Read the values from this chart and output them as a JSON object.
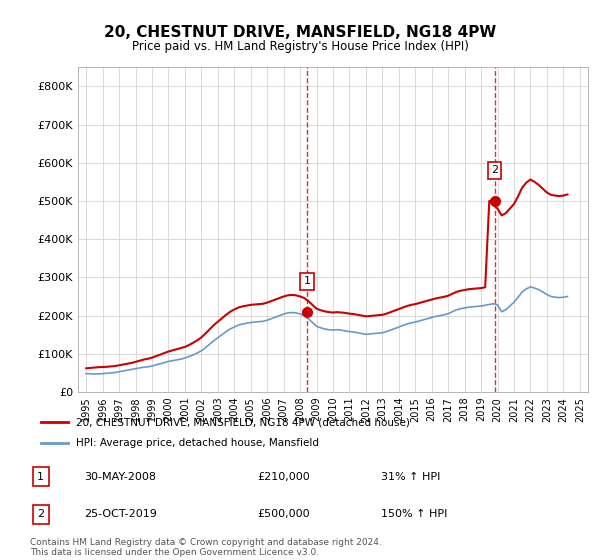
{
  "title": "20, CHESTNUT DRIVE, MANSFIELD, NG18 4PW",
  "subtitle": "Price paid vs. HM Land Registry's House Price Index (HPI)",
  "house_color": "#cc0000",
  "hpi_color": "#6699cc",
  "background_color": "#ffffff",
  "grid_color": "#cccccc",
  "ylim": [
    0,
    850000
  ],
  "yticks": [
    0,
    100000,
    200000,
    300000,
    400000,
    500000,
    600000,
    700000,
    800000
  ],
  "xlim_start": 1994.5,
  "xlim_end": 2025.5,
  "sale1_x": 2008.41,
  "sale1_y": 210000,
  "sale1_label": "1",
  "sale1_date": "30-MAY-2008",
  "sale1_price": "£210,000",
  "sale1_pct": "31% ↑ HPI",
  "sale2_x": 2019.82,
  "sale2_y": 500000,
  "sale2_label": "2",
  "sale2_date": "25-OCT-2019",
  "sale2_price": "£500,000",
  "sale2_pct": "150% ↑ HPI",
  "legend_house": "20, CHESTNUT DRIVE, MANSFIELD, NG18 4PW (detached house)",
  "legend_hpi": "HPI: Average price, detached house, Mansfield",
  "footer": "Contains HM Land Registry data © Crown copyright and database right 2024.\nThis data is licensed under the Open Government Licence v3.0.",
  "hpi_data_x": [
    1995.0,
    1995.25,
    1995.5,
    1995.75,
    1996.0,
    1996.25,
    1996.5,
    1996.75,
    1997.0,
    1997.25,
    1997.5,
    1997.75,
    1998.0,
    1998.25,
    1998.5,
    1998.75,
    1999.0,
    1999.25,
    1999.5,
    1999.75,
    2000.0,
    2000.25,
    2000.5,
    2000.75,
    2001.0,
    2001.25,
    2001.5,
    2001.75,
    2002.0,
    2002.25,
    2002.5,
    2002.75,
    2003.0,
    2003.25,
    2003.5,
    2003.75,
    2004.0,
    2004.25,
    2004.5,
    2004.75,
    2005.0,
    2005.25,
    2005.5,
    2005.75,
    2006.0,
    2006.25,
    2006.5,
    2006.75,
    2007.0,
    2007.25,
    2007.5,
    2007.75,
    2008.0,
    2008.25,
    2008.5,
    2008.75,
    2009.0,
    2009.25,
    2009.5,
    2009.75,
    2010.0,
    2010.25,
    2010.5,
    2010.75,
    2011.0,
    2011.25,
    2011.5,
    2011.75,
    2012.0,
    2012.25,
    2012.5,
    2012.75,
    2013.0,
    2013.25,
    2013.5,
    2013.75,
    2014.0,
    2014.25,
    2014.5,
    2014.75,
    2015.0,
    2015.25,
    2015.5,
    2015.75,
    2016.0,
    2016.25,
    2016.5,
    2016.75,
    2017.0,
    2017.25,
    2017.5,
    2017.75,
    2018.0,
    2018.25,
    2018.5,
    2018.75,
    2019.0,
    2019.25,
    2019.5,
    2019.75,
    2020.0,
    2020.25,
    2020.5,
    2020.75,
    2021.0,
    2021.25,
    2021.5,
    2021.75,
    2022.0,
    2022.25,
    2022.5,
    2022.75,
    2023.0,
    2023.25,
    2023.5,
    2023.75,
    2024.0,
    2024.25
  ],
  "hpi_data_y": [
    48000,
    47500,
    47000,
    47500,
    48000,
    49000,
    50000,
    51000,
    53000,
    55000,
    57000,
    59000,
    61000,
    63000,
    65000,
    66000,
    68000,
    71000,
    74000,
    77000,
    80000,
    82000,
    84000,
    86000,
    89000,
    93000,
    97000,
    102000,
    108000,
    116000,
    125000,
    134000,
    142000,
    150000,
    158000,
    165000,
    170000,
    175000,
    178000,
    180000,
    182000,
    183000,
    184000,
    185000,
    188000,
    192000,
    196000,
    200000,
    204000,
    207000,
    208000,
    207000,
    204000,
    200000,
    192000,
    182000,
    172000,
    168000,
    165000,
    163000,
    162000,
    163000,
    162000,
    160000,
    158000,
    157000,
    155000,
    153000,
    151000,
    152000,
    153000,
    154000,
    155000,
    158000,
    162000,
    166000,
    170000,
    174000,
    178000,
    181000,
    183000,
    186000,
    189000,
    192000,
    195000,
    198000,
    200000,
    202000,
    205000,
    210000,
    215000,
    218000,
    220000,
    222000,
    223000,
    224000,
    225000,
    227000,
    229000,
    231000,
    228000,
    210000,
    215000,
    225000,
    235000,
    248000,
    262000,
    270000,
    275000,
    272000,
    268000,
    262000,
    255000,
    250000,
    248000,
    247000,
    248000,
    250000
  ],
  "house_data_x": [
    1995.0,
    1995.25,
    1995.5,
    1995.75,
    1996.0,
    1996.25,
    1996.5,
    1996.75,
    1997.0,
    1997.25,
    1997.5,
    1997.75,
    1998.0,
    1998.25,
    1998.5,
    1998.75,
    1999.0,
    1999.25,
    1999.5,
    1999.75,
    2000.0,
    2000.25,
    2000.5,
    2000.75,
    2001.0,
    2001.25,
    2001.5,
    2001.75,
    2002.0,
    2002.25,
    2002.5,
    2002.75,
    2003.0,
    2003.25,
    2003.5,
    2003.75,
    2004.0,
    2004.25,
    2004.5,
    2004.75,
    2005.0,
    2005.25,
    2005.5,
    2005.75,
    2006.0,
    2006.25,
    2006.5,
    2006.75,
    2007.0,
    2007.25,
    2007.5,
    2007.75,
    2008.0,
    2008.25,
    2008.5,
    2008.75,
    2009.0,
    2009.25,
    2009.5,
    2009.75,
    2010.0,
    2010.25,
    2010.5,
    2010.75,
    2011.0,
    2011.25,
    2011.5,
    2011.75,
    2012.0,
    2012.25,
    2012.5,
    2012.75,
    2013.0,
    2013.25,
    2013.5,
    2013.75,
    2014.0,
    2014.25,
    2014.5,
    2014.75,
    2015.0,
    2015.25,
    2015.5,
    2015.75,
    2016.0,
    2016.25,
    2016.5,
    2016.75,
    2017.0,
    2017.25,
    2017.5,
    2017.75,
    2018.0,
    2018.25,
    2018.5,
    2018.75,
    2019.0,
    2019.25,
    2019.5,
    2019.75,
    2020.0,
    2020.25,
    2020.5,
    2020.75,
    2021.0,
    2021.25,
    2021.5,
    2021.75,
    2022.0,
    2022.25,
    2022.5,
    2022.75,
    2023.0,
    2023.25,
    2023.5,
    2023.75,
    2024.0,
    2024.25
  ],
  "house_data_y": [
    62000,
    63000,
    64000,
    65000,
    65500,
    66000,
    67000,
    68000,
    70000,
    72000,
    74000,
    76000,
    79000,
    82000,
    85000,
    87000,
    90000,
    94000,
    98000,
    102000,
    106000,
    109000,
    112000,
    115000,
    118000,
    123000,
    129000,
    135000,
    143000,
    153000,
    164000,
    175000,
    184000,
    193000,
    202000,
    210000,
    216000,
    221000,
    224000,
    226000,
    228000,
    229000,
    230000,
    231000,
    234000,
    238000,
    242000,
    246000,
    250000,
    253000,
    254000,
    253000,
    250000,
    246000,
    238000,
    228000,
    218000,
    214000,
    211000,
    209000,
    208000,
    209000,
    208000,
    207000,
    205000,
    204000,
    202000,
    200000,
    198000,
    199000,
    200000,
    201000,
    202000,
    205000,
    209000,
    213000,
    217000,
    221000,
    225000,
    228000,
    230000,
    233000,
    236000,
    239000,
    242000,
    245000,
    247000,
    249000,
    252000,
    257000,
    262000,
    265000,
    267000,
    269000,
    270000,
    271000,
    272000,
    274000,
    500000,
    490000,
    480000,
    462000,
    468000,
    480000,
    492000,
    512000,
    535000,
    548000,
    556000,
    550000,
    542000,
    532000,
    522000,
    516000,
    514000,
    513000,
    514000,
    517000
  ]
}
